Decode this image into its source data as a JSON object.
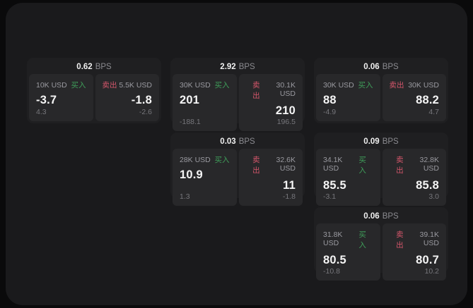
{
  "theme": {
    "outer_bg": "#0a0a0b",
    "panel_bg": "#1a1a1c",
    "card_bg": "#1f1f21",
    "tile_bg": "#28282a",
    "buy_color": "#3f9e5a",
    "sell_color": "#d5566b",
    "value_color": "#f5f5f5",
    "muted_color": "#9a9aa0"
  },
  "labels": {
    "bps": "BPS",
    "buy": "买入",
    "sell": "卖出"
  },
  "cards": [
    {
      "row": 1,
      "col": 1,
      "bps": "0.62",
      "buy": {
        "notional": "10K USD",
        "value": "-3.7",
        "sub": "4.3"
      },
      "sell": {
        "notional": "5.5K USD",
        "value": "-1.8",
        "sub": "-2.6"
      }
    },
    {
      "row": 1,
      "col": 2,
      "bps": "2.92",
      "buy": {
        "notional": "30K USD",
        "value": "201",
        "sub": "-188.1"
      },
      "sell": {
        "notional": "30.1K USD",
        "value": "210",
        "sub": "196.5"
      }
    },
    {
      "row": 1,
      "col": 3,
      "bps": "0.06",
      "buy": {
        "notional": "30K USD",
        "value": "88",
        "sub": "-4.9"
      },
      "sell": {
        "notional": "30K USD",
        "value": "88.2",
        "sub": "4.7"
      }
    },
    {
      "row": 2,
      "col": 2,
      "bps": "0.03",
      "buy": {
        "notional": "28K USD",
        "value": "10.9",
        "sub": "1.3"
      },
      "sell": {
        "notional": "32.6K USD",
        "value": "11",
        "sub": "-1.8"
      }
    },
    {
      "row": 2,
      "col": 3,
      "bps": "0.09",
      "buy": {
        "notional": "34.1K USD",
        "value": "85.5",
        "sub": "-3.1"
      },
      "sell": {
        "notional": "32.8K USD",
        "value": "85.8",
        "sub": "3.0"
      }
    },
    {
      "row": 3,
      "col": 3,
      "bps": "0.06",
      "buy": {
        "notional": "31.8K USD",
        "value": "80.5",
        "sub": "-10.8"
      },
      "sell": {
        "notional": "39.1K USD",
        "value": "80.7",
        "sub": "10.2"
      }
    }
  ]
}
